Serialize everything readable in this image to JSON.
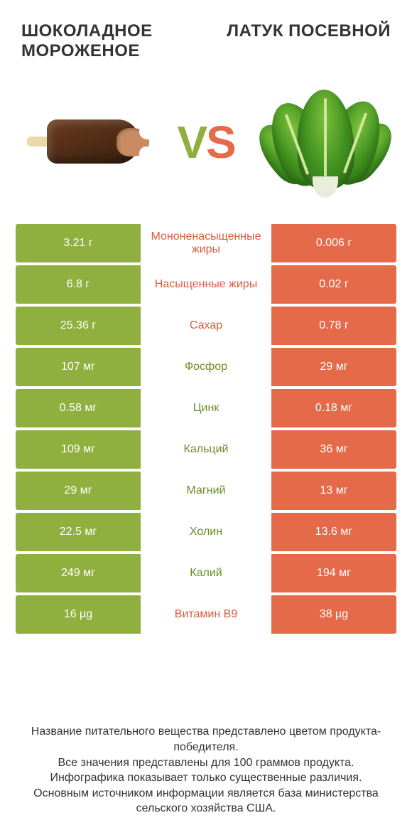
{
  "colors": {
    "green": "#8fb03e",
    "orange": "#e46a4a",
    "green_text": "#6b8d25",
    "orange_text": "#d85c3e",
    "dim_text": "#b9b9b9",
    "background": "#ffffff"
  },
  "header": {
    "left_title": "ШОКОЛАДНОЕ МОРОЖЕНОЕ",
    "right_title": "ЛАТУК ПОСЕВНОЙ",
    "vs_v": "V",
    "vs_s": "S"
  },
  "table": {
    "type": "comparison-table",
    "left_winner_color": "green",
    "right_winner_color": "orange",
    "rows": [
      {
        "label": "Мононенасыщенные жиры",
        "left": "3.21 г",
        "right": "0.006 г",
        "winner": "right",
        "label_color": "orange"
      },
      {
        "label": "Насыщенные жиры",
        "left": "6.8 г",
        "right": "0.02 г",
        "winner": "right",
        "label_color": "orange"
      },
      {
        "label": "Сахар",
        "left": "25.36 г",
        "right": "0.78 г",
        "winner": "right",
        "label_color": "orange"
      },
      {
        "label": "Фосфор",
        "left": "107 мг",
        "right": "29 мг",
        "winner": "left",
        "label_color": "green"
      },
      {
        "label": "Цинк",
        "left": "0.58 мг",
        "right": "0.18 мг",
        "winner": "left",
        "label_color": "green"
      },
      {
        "label": "Кальций",
        "left": "109 мг",
        "right": "36 мг",
        "winner": "left",
        "label_color": "green"
      },
      {
        "label": "Магний",
        "left": "29 мг",
        "right": "13 мг",
        "winner": "left",
        "label_color": "green"
      },
      {
        "label": "Холин",
        "left": "22.5 мг",
        "right": "13.6 мг",
        "winner": "left",
        "label_color": "green"
      },
      {
        "label": "Калий",
        "left": "249 мг",
        "right": "194 мг",
        "winner": "left",
        "label_color": "green"
      },
      {
        "label": "Витамин B9",
        "left": "16 µg",
        "right": "38 µg",
        "winner": "right",
        "label_color": "orange"
      }
    ]
  },
  "footer": {
    "line1": "Название питательного вещества представлено цветом продукта-победителя.",
    "line2": "Все значения представлены для 100 граммов продукта.",
    "line3": "Инфографика показывает только существенные различия.",
    "line4": "Основным источником информации является база министерства сельского хозяйства США."
  }
}
